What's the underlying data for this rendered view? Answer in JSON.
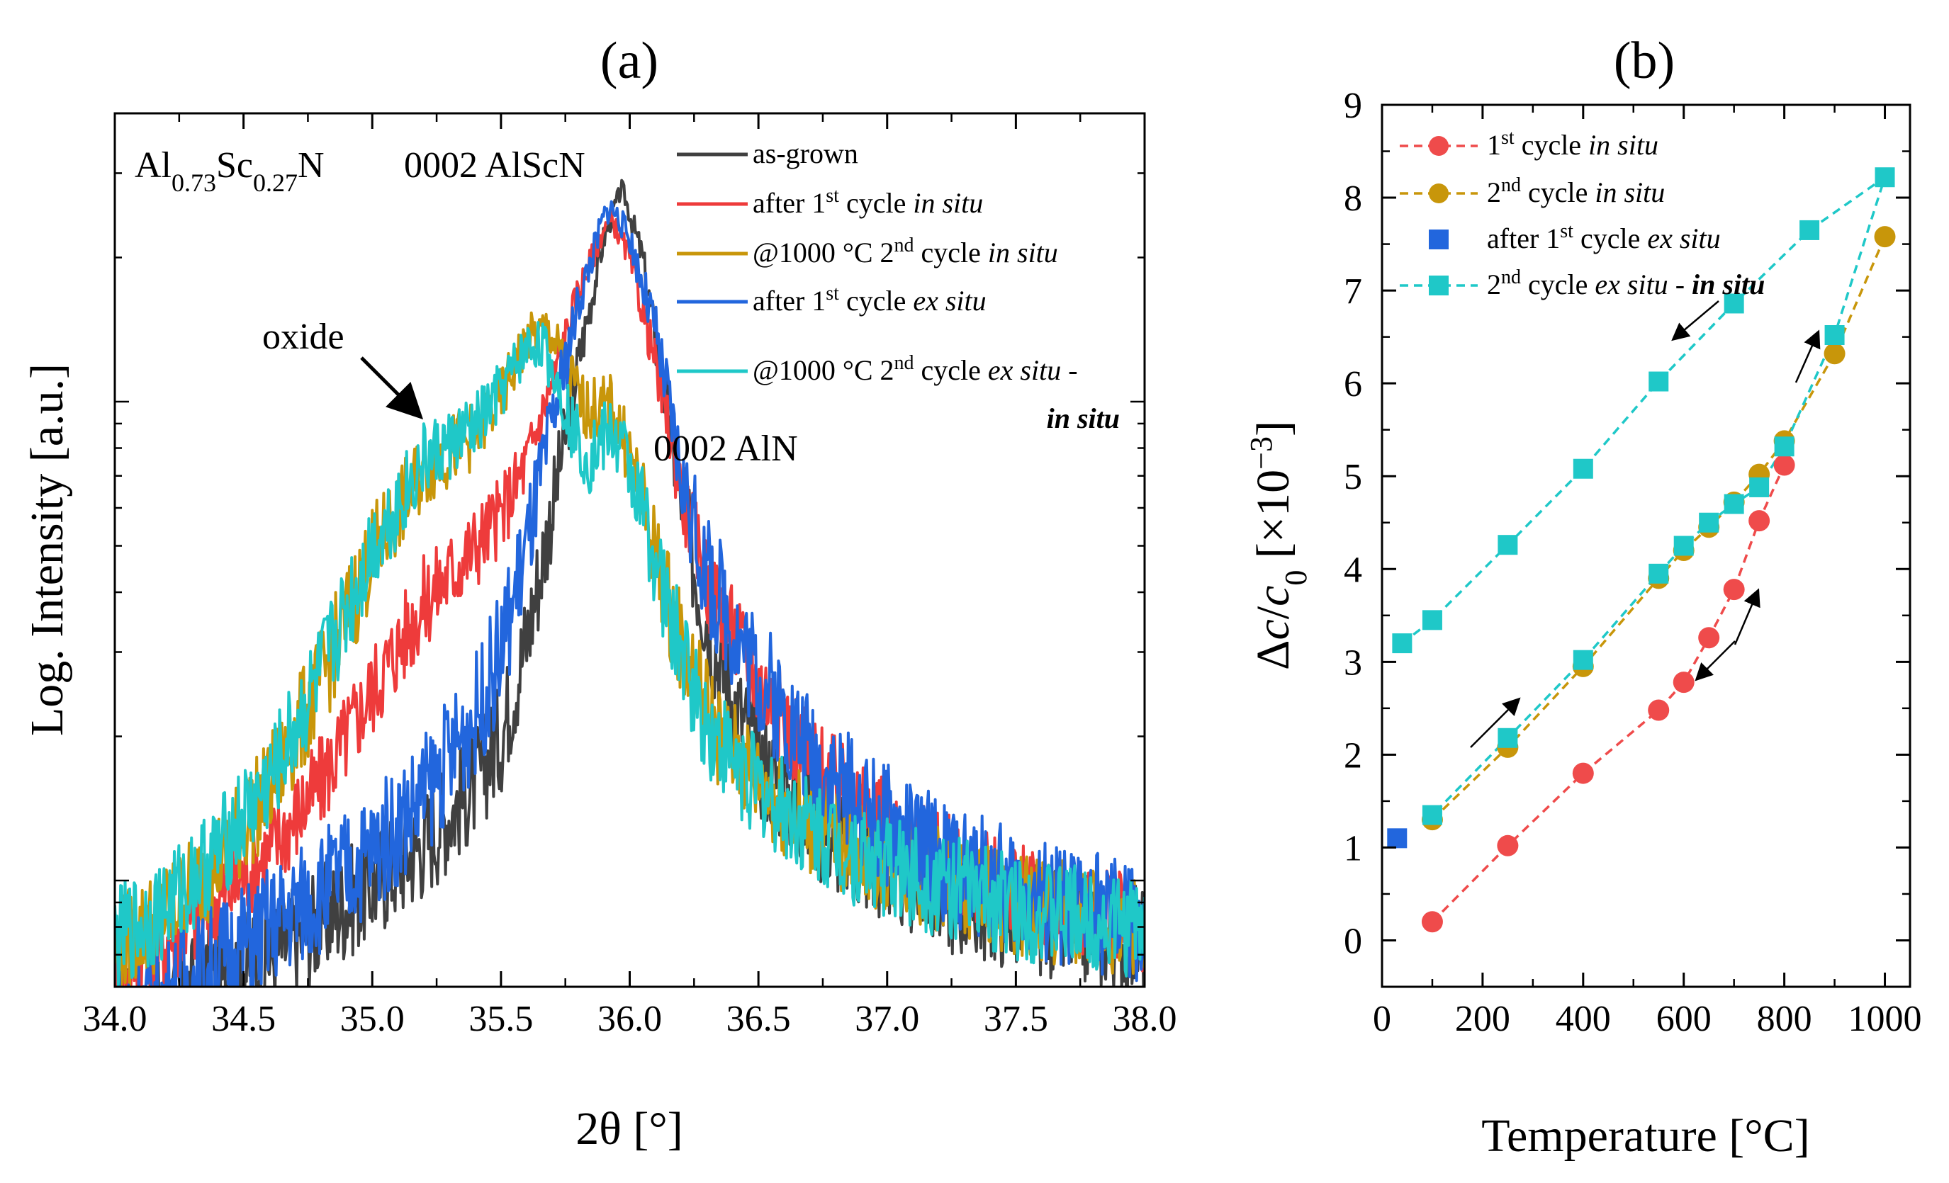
{
  "chart_data": [
    {
      "type": "line",
      "panel_label": "(a)",
      "xlabel": "2θ [°]",
      "ylabel": "Log. Intensity [a.u.]",
      "xlim": [
        34.0,
        38.0
      ],
      "yscale": "log",
      "ylim": [
        0.6,
        40
      ],
      "y_ticks_visible_labels": false,
      "x_ticks": [
        "34.0",
        "34.5",
        "35.0",
        "35.5",
        "36.0",
        "36.5",
        "37.0",
        "37.5",
        "38.0"
      ],
      "x_tick_values": [
        34.0,
        34.5,
        35.0,
        35.5,
        36.0,
        36.5,
        37.0,
        37.5,
        38.0
      ],
      "material_label": {
        "base1": "Al",
        "sub1": "0.73",
        "base2": "Sc",
        "sub2": "0.27",
        "base3": "N"
      },
      "annotations": {
        "alscn": "0002 AlScN",
        "aln": "0002 AlN",
        "oxide": "oxide"
      },
      "series": [
        {
          "name": "as-grown",
          "legend": {
            "main": "as-grown"
          },
          "color": "#404040",
          "x": [
            34.0,
            34.2,
            34.4,
            34.6,
            34.8,
            35.0,
            35.2,
            35.4,
            35.5,
            35.6,
            35.7,
            35.8,
            35.9,
            35.97,
            36.05,
            36.15,
            36.25,
            36.35,
            36.5,
            36.7,
            36.9,
            37.1,
            37.3,
            37.5,
            37.7,
            37.9,
            38.0
          ],
          "y": [
            0.5,
            0.55,
            0.62,
            0.7,
            0.82,
            0.98,
            1.2,
            1.6,
            2.0,
            3.2,
            6.0,
            12.0,
            22.0,
            28.0,
            20.0,
            9.0,
            4.5,
            2.8,
            1.8,
            1.35,
            1.12,
            1.0,
            0.9,
            0.85,
            0.8,
            0.77,
            0.75
          ],
          "noise": 0.12
        },
        {
          "name": "after 1st cycle in situ",
          "legend": {
            "main": "after 1",
            "sup": "st",
            "rest": " cycle ",
            "ital": "in situ"
          },
          "color": "#ee3b3b",
          "x": [
            34.0,
            34.2,
            34.4,
            34.6,
            34.8,
            35.0,
            35.2,
            35.4,
            35.5,
            35.6,
            35.7,
            35.8,
            35.9,
            35.93,
            36.0,
            36.1,
            36.2,
            36.3,
            36.5,
            36.7,
            36.9,
            37.1,
            37.3,
            37.5,
            37.7,
            37.9,
            38.0
          ],
          "y": [
            0.65,
            0.75,
            0.9,
            1.15,
            1.6,
            2.5,
            3.8,
            5.0,
            5.8,
            7.5,
            11.0,
            17.0,
            23.0,
            24.0,
            20.0,
            12.0,
            6.5,
            4.2,
            2.6,
            1.8,
            1.4,
            1.2,
            1.05,
            0.95,
            0.88,
            0.83,
            0.8
          ],
          "noise": 0.1
        },
        {
          "name": "@1000 °C 2nd cycle in situ",
          "legend": {
            "main": "@1000 °C 2",
            "sup": "nd",
            "rest": " cycle ",
            "ital": "in situ"
          },
          "color": "#c8960a",
          "x": [
            34.0,
            34.2,
            34.4,
            34.6,
            34.8,
            35.0,
            35.2,
            35.4,
            35.5,
            35.6,
            35.68,
            35.75,
            35.82,
            35.88,
            35.93,
            36.0,
            36.1,
            36.2,
            36.35,
            36.5,
            36.7,
            36.9,
            37.1,
            37.3,
            37.5,
            37.7,
            37.9,
            38.0
          ],
          "y": [
            0.72,
            0.85,
            1.1,
            1.55,
            2.6,
            4.8,
            7.2,
            8.6,
            10.2,
            13.5,
            14.2,
            12.0,
            9.8,
            9.6,
            9.8,
            7.8,
            4.8,
            3.1,
            2.0,
            1.6,
            1.3,
            1.15,
            1.05,
            0.97,
            0.9,
            0.85,
            0.82,
            0.8
          ],
          "noise": 0.11
        },
        {
          "name": "after 1st cycle ex situ",
          "legend": {
            "main": "after 1",
            "sup": "st",
            "rest": " cycle ",
            "ital": "ex situ"
          },
          "color": "#2266dd",
          "x": [
            34.0,
            34.2,
            34.4,
            34.6,
            34.8,
            35.0,
            35.2,
            35.4,
            35.5,
            35.6,
            35.7,
            35.8,
            35.9,
            35.93,
            36.0,
            36.1,
            36.2,
            36.3,
            36.5,
            36.7,
            36.9,
            37.1,
            37.3,
            37.5,
            37.7,
            37.9,
            38.0
          ],
          "y": [
            0.5,
            0.57,
            0.68,
            0.8,
            0.95,
            1.15,
            1.5,
            2.2,
            3.0,
            5.0,
            9.0,
            16.0,
            24.5,
            25.5,
            22.0,
            14.0,
            7.0,
            4.3,
            2.7,
            1.85,
            1.42,
            1.2,
            1.05,
            0.95,
            0.88,
            0.83,
            0.8
          ],
          "noise": 0.13
        },
        {
          "name": "@1000 °C 2nd cycle ex situ - in situ",
          "legend": {
            "main": "@1000 °C 2",
            "sup": "nd",
            "rest": " cycle ",
            "ital": "ex situ",
            "dash": " -",
            "line2": "in situ"
          },
          "color": "#1fc8c8",
          "x": [
            34.0,
            34.2,
            34.4,
            34.6,
            34.8,
            35.0,
            35.2,
            35.4,
            35.5,
            35.6,
            35.66,
            35.72,
            35.78,
            35.84,
            35.9,
            35.93,
            35.98,
            36.05,
            36.15,
            36.3,
            36.5,
            36.7,
            36.9,
            37.1,
            37.3,
            37.5,
            37.7,
            37.9,
            38.0
          ],
          "y": [
            0.75,
            0.88,
            1.15,
            1.6,
            2.7,
            5.0,
            7.5,
            8.8,
            10.5,
            13.0,
            13.2,
            11.0,
            8.8,
            7.6,
            8.4,
            8.6,
            7.8,
            6.0,
            3.6,
            2.1,
            1.55,
            1.28,
            1.12,
            1.02,
            0.95,
            0.88,
            0.84,
            0.81,
            0.8
          ],
          "noise": 0.11
        }
      ]
    },
    {
      "type": "scatter",
      "panel_label": "(b)",
      "xlabel": "Temperature [°C]",
      "ylabel_parts": {
        "delta": "Δ",
        "c": "c",
        "slash": "/",
        "c0": "c",
        "zero": "0",
        "bracket_open": " [×10",
        "exp": "−3",
        "bracket_close": "]"
      },
      "xlim": [
        0,
        1050
      ],
      "ylim": [
        -0.5,
        9
      ],
      "x_ticks": [
        "0",
        "200",
        "400",
        "600",
        "800",
        "1000"
      ],
      "x_tick_values": [
        0,
        200,
        400,
        600,
        800,
        1000
      ],
      "y_ticks": [
        "0",
        "1",
        "2",
        "3",
        "4",
        "5",
        "6",
        "7",
        "8",
        "9"
      ],
      "y_tick_values": [
        0,
        1,
        2,
        3,
        4,
        5,
        6,
        7,
        8,
        9
      ],
      "series": [
        {
          "name": "1st cycle in situ",
          "legend": {
            "main": "1",
            "sup": "st",
            "rest": " cycle  ",
            "ital": "in situ"
          },
          "color": "#ef4b4b",
          "marker": "circle",
          "line": "dashed",
          "x": [
            100,
            250,
            400,
            550,
            600,
            650,
            700,
            750,
            800
          ],
          "y": [
            0.2,
            1.02,
            1.8,
            2.48,
            2.78,
            3.26,
            3.78,
            4.52,
            5.12
          ]
        },
        {
          "name": "2nd cycle in situ",
          "legend": {
            "main": "2",
            "sup": "nd",
            "rest": " cycle  ",
            "ital": "in situ"
          },
          "color": "#c8960a",
          "marker": "circle",
          "line": "dashed",
          "x": [
            1000,
            900,
            800,
            750,
            700,
            650,
            600,
            550,
            400,
            250,
            100
          ],
          "y": [
            7.58,
            6.32,
            5.38,
            5.02,
            4.72,
            4.45,
            4.2,
            3.9,
            2.95,
            2.08,
            1.3
          ]
        },
        {
          "name": "after 1st cycle ex situ",
          "legend": {
            "main": "after 1",
            "sup": "st",
            "rest": "  cycle  ",
            "ital": "ex situ"
          },
          "color": "#2266dd",
          "marker": "square",
          "line": "none",
          "x": [
            30
          ],
          "y": [
            1.1
          ]
        },
        {
          "name": "2nd cycle ex situ - in situ",
          "legend": {
            "main": "2",
            "sup": "nd",
            "rest": " cycle  ",
            "ital": "ex situ",
            "dash": " - ",
            "boldital": "in situ"
          },
          "color": "#1fc8c8",
          "marker": "square",
          "line": "dashed",
          "x": [
            40,
            100,
            250,
            400,
            550,
            700,
            850,
            1000,
            900,
            800,
            750,
            700,
            650,
            600,
            550,
            400,
            250,
            100
          ],
          "y": [
            3.2,
            3.45,
            4.26,
            5.08,
            6.02,
            6.86,
            7.65,
            8.22,
            6.52,
            5.32,
            4.88,
            4.7,
            4.5,
            4.25,
            3.95,
            3.02,
            2.18,
            1.35
          ]
        }
      ]
    }
  ]
}
